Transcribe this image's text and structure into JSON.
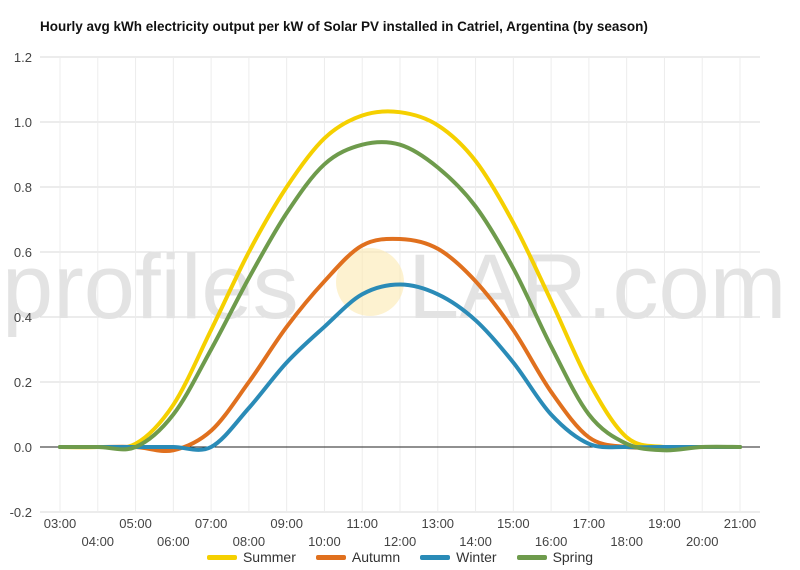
{
  "chart_data": {
    "type": "line",
    "title": "Hourly avg kWh electricity output per kW of Solar PV installed in Catriel, Argentina (by season)",
    "ylim": [
      -0.2,
      1.2
    ],
    "yticks": [
      "1.2",
      "1.0",
      "0.8",
      "0.6",
      "0.4",
      "0.2",
      "0.0",
      "-0.2"
    ],
    "xticks_top": [
      "03:00",
      "05:00",
      "07:00",
      "09:00",
      "11:00",
      "13:00",
      "15:00",
      "17:00",
      "19:00",
      "21:00"
    ],
    "xticks_bottom": [
      "04:00",
      "06:00",
      "08:00",
      "10:00",
      "12:00",
      "14:00",
      "16:00",
      "18:00",
      "20:00"
    ],
    "grid": true,
    "legend_position": "bottom",
    "x": [
      "03:00",
      "04:00",
      "05:00",
      "06:00",
      "07:00",
      "08:00",
      "09:00",
      "10:00",
      "11:00",
      "12:00",
      "13:00",
      "14:00",
      "15:00",
      "16:00",
      "17:00",
      "18:00",
      "19:00",
      "20:00",
      "21:00"
    ],
    "series": [
      {
        "name": "Summer",
        "color": "#f5d000",
        "values": [
          0,
          0,
          0.01,
          0.13,
          0.36,
          0.6,
          0.8,
          0.95,
          1.02,
          1.03,
          0.99,
          0.88,
          0.69,
          0.45,
          0.2,
          0.03,
          0,
          0,
          0
        ]
      },
      {
        "name": "Autumn",
        "color": "#e0701e",
        "values": [
          0,
          0,
          0,
          -0.01,
          0.05,
          0.2,
          0.37,
          0.51,
          0.62,
          0.64,
          0.61,
          0.51,
          0.36,
          0.17,
          0.03,
          0,
          0,
          0,
          0
        ]
      },
      {
        "name": "Winter",
        "color": "#2a8bb7",
        "values": [
          0,
          0,
          0,
          0,
          0,
          0.12,
          0.26,
          0.37,
          0.47,
          0.5,
          0.47,
          0.39,
          0.26,
          0.1,
          0.01,
          0,
          0,
          0,
          0
        ]
      },
      {
        "name": "Spring",
        "color": "#6e9b4c",
        "values": [
          0,
          0,
          0,
          0.1,
          0.3,
          0.52,
          0.72,
          0.87,
          0.93,
          0.93,
          0.86,
          0.74,
          0.55,
          0.31,
          0.1,
          0.01,
          -0.01,
          0,
          0
        ]
      }
    ]
  },
  "watermark": {
    "left": "profiles",
    "right": "LAR.com"
  }
}
